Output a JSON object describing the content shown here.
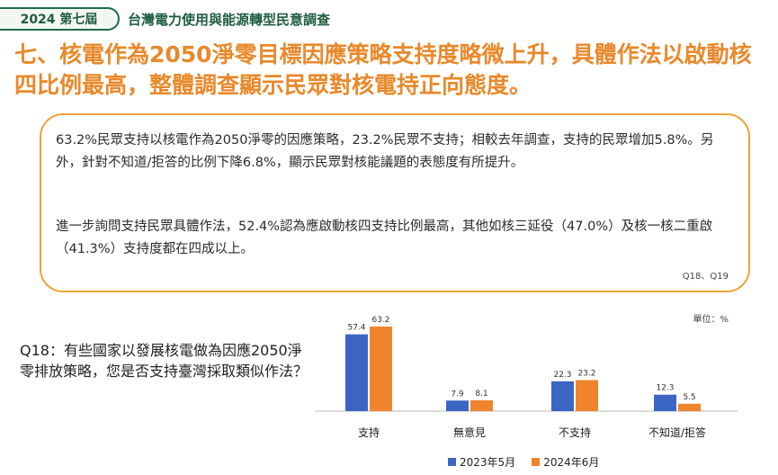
{
  "header": {
    "badge": "2024 第七屆",
    "survey_title": "台灣電力使用與能源轉型民意調查"
  },
  "headline": "七、核電作為2050淨零目標因應策略支持度略微上升，具體作法以啟動核四比例最高，整體調查顯示民眾對核電持正向態度。",
  "summary": {
    "paragraph1": "63.2%民眾支持以核電作為2050淨零的因應策略，23.2%民眾不支持；相較去年調查，支持的民眾增加5.8%。另外，針對不知道/拒答的比例下降6.8%，顯示民眾對核能議題的表態度有所提升。",
    "paragraph2": "進一步詢問支持民眾具體作法，52.4%認為應啟動核四支持比例最高，其他如核三延役（47.0%）及核一核二重啟（41.3%）支持度都在四成以上。",
    "source": "Q18、Q19"
  },
  "question": "Q18：有些國家以發展核電做為因應2050淨零排放策略，您是否支持臺灣採取類似作法？",
  "chart_data": {
    "type": "bar",
    "unit_label": "單位：%",
    "categories": [
      "支持",
      "無意見",
      "不支持",
      "不知道/拒答"
    ],
    "series": [
      {
        "name": "2023年5月",
        "color": "#3b66c4",
        "values": [
          57.4,
          7.9,
          22.3,
          12.3
        ]
      },
      {
        "name": "2024年6月",
        "color": "#f0842c",
        "values": [
          63.2,
          8.1,
          23.2,
          5.5
        ]
      }
    ],
    "ylim": [
      0,
      63.2
    ],
    "grid": false,
    "legend_position": "bottom"
  }
}
